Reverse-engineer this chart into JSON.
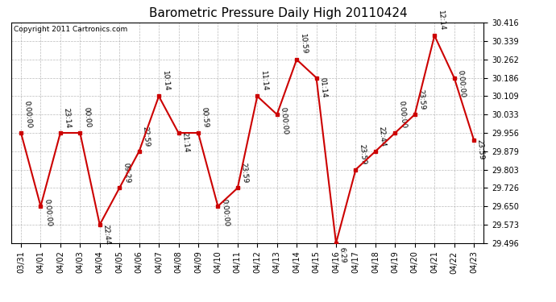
{
  "title": "Barometric Pressure Daily High 20110424",
  "copyright": "Copyright 2011 Cartronics.com",
  "x_labels": [
    "03/31",
    "04/01",
    "04/02",
    "04/03",
    "04/04",
    "04/05",
    "04/06",
    "04/07",
    "04/08",
    "04/09",
    "04/10",
    "04/11",
    "04/12",
    "04/13",
    "04/14",
    "04/15",
    "04/16",
    "04/17",
    "04/18",
    "04/19",
    "04/20",
    "04/21",
    "04/22",
    "04/23"
  ],
  "y_values": [
    29.956,
    29.65,
    29.956,
    29.956,
    29.573,
    29.726,
    29.879,
    30.109,
    29.956,
    29.956,
    29.65,
    29.726,
    30.109,
    30.033,
    30.262,
    30.186,
    29.496,
    29.803,
    29.879,
    29.956,
    30.033,
    30.362,
    30.186,
    29.926
  ],
  "point_labels": [
    "0:00:00",
    "0:00:00",
    "23:14",
    "00:00",
    "22:44",
    "09:29",
    "22:59",
    "10:14",
    "21:14",
    "00:59",
    "0:00:00",
    "23:59",
    "11:14",
    "0:00:00",
    "10:59",
    "01:14",
    "6:29",
    "23:59",
    "22:44",
    "0:00:00",
    "23:59",
    "12:14",
    "0:00:00",
    "23:59"
  ],
  "y_ticks": [
    29.496,
    29.573,
    29.65,
    29.726,
    29.803,
    29.879,
    29.956,
    30.033,
    30.109,
    30.186,
    30.262,
    30.339,
    30.416
  ],
  "y_tick_labels": [
    "29.496",
    "29.573",
    "29.650",
    "29.726",
    "29.803",
    "29.879",
    "29.956",
    "30.033",
    "30.109",
    "30.186",
    "30.262",
    "30.339",
    "30.416"
  ],
  "line_color": "#cc0000",
  "marker_color": "#cc0000",
  "bg_color": "#ffffff",
  "grid_color": "#aaaaaa",
  "title_fontsize": 11,
  "tick_fontsize": 7,
  "copyright_fontsize": 6.5,
  "annotation_fontsize": 6.5
}
